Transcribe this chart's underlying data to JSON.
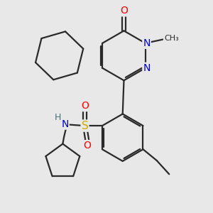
{
  "background_color": "#e8e8e8",
  "bond_color": "#2a2a2a",
  "bond_width": 1.6,
  "atom_colors": {
    "O": "#ff0000",
    "N": "#0000cd",
    "S": "#ccaa00",
    "C": "#2a2a2a",
    "H": "#507070"
  },
  "figsize": [
    3.0,
    3.0
  ],
  "dpi": 100
}
